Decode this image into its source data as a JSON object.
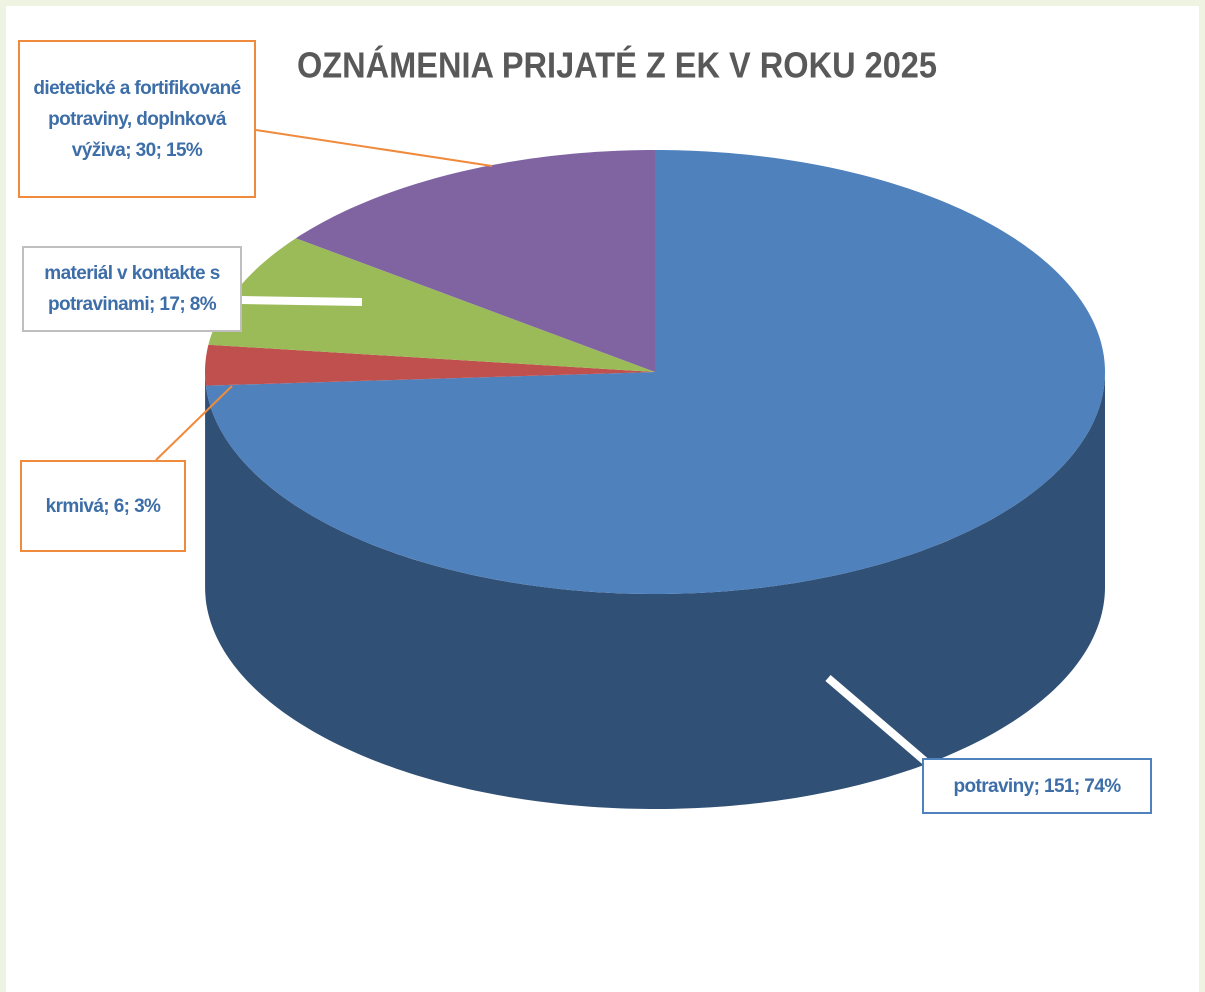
{
  "chart_data": {
    "type": "pie",
    "title": "OZNÁMENIA PRIJATÉ Z EK V ROKU 2025",
    "values": [
      151,
      6,
      17,
      30
    ],
    "value_labels": [
      "potraviny; 151; 74%",
      "krmivá; 6; 3%",
      "materiál v kontakte s potravinami; 17; 8%",
      "dietetické a fortifikované potraviny, doplnková výživa; 30; 15%"
    ],
    "colors": [
      "#4f81bd",
      "#c0504d",
      "#9bbb59",
      "#8064a2"
    ]
  }
}
